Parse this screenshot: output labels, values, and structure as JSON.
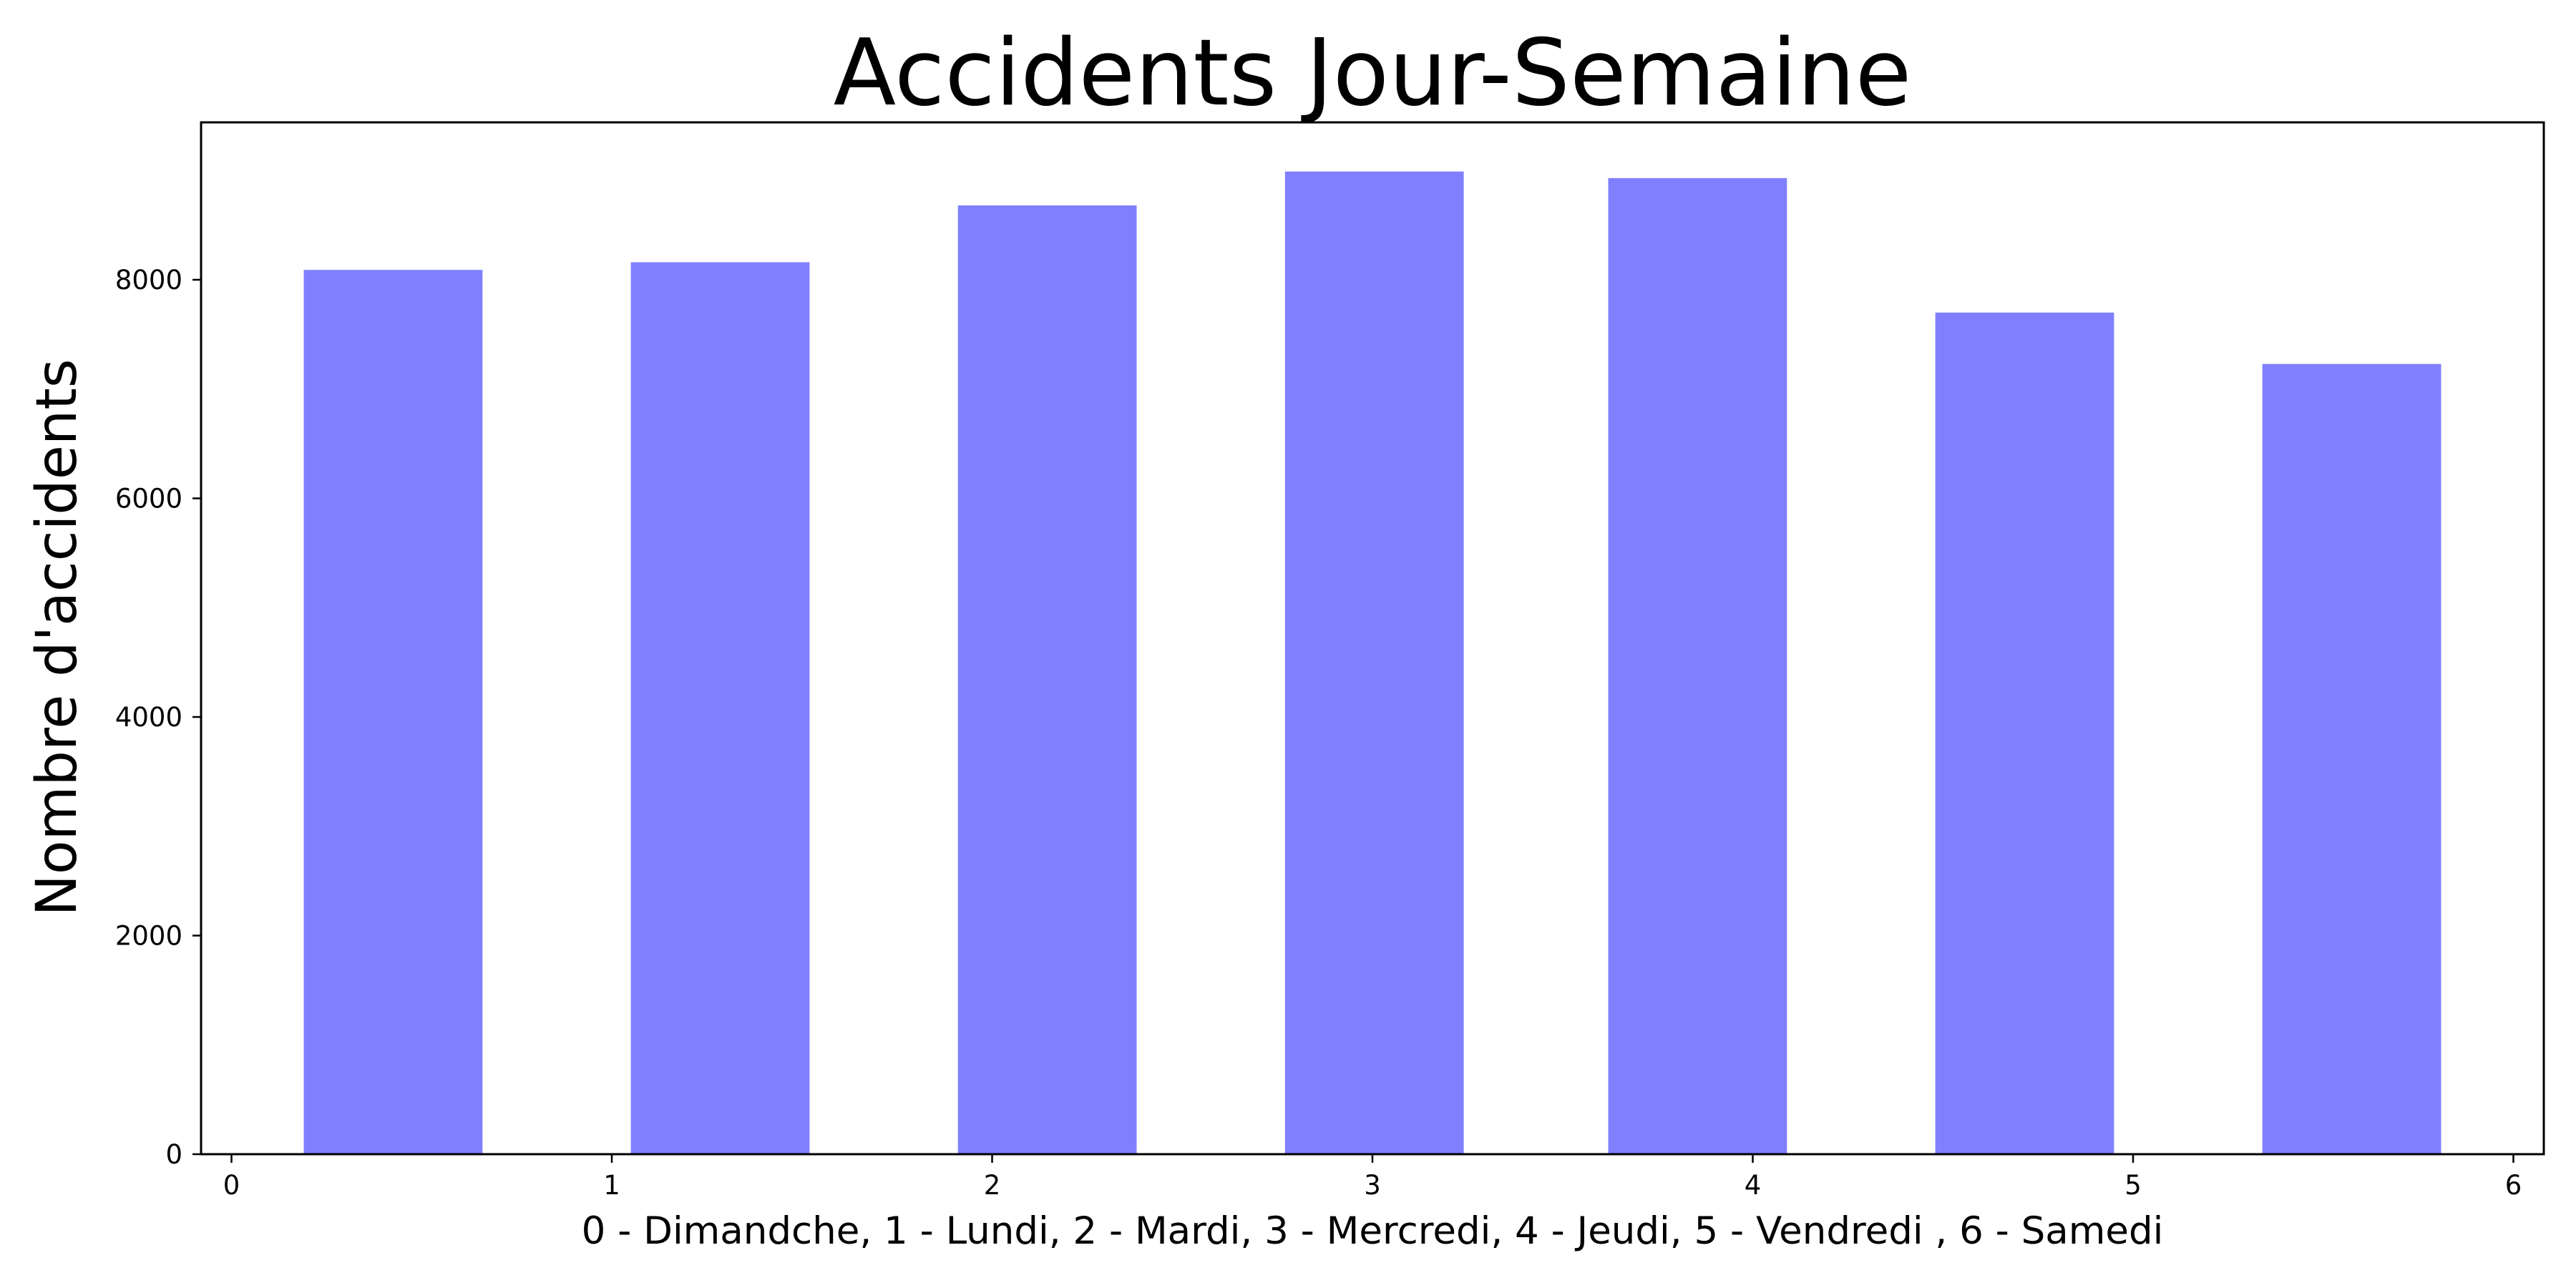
{
  "chart_data": {
    "type": "bar",
    "title": "Accidents Jour-Semaine",
    "xlabel": "0 - Dimandche,  1 - Lundi, 2 - Mardi, 3 - Mercredi, 4 - Jeudi, 5 - Vendredi , 6 - Samedi",
    "ylabel": "Nombre d'accidents",
    "bars": [
      {
        "x_start": 0.19,
        "x_end": 0.66,
        "value": 8090
      },
      {
        "x_start": 1.05,
        "x_end": 1.52,
        "value": 8160
      },
      {
        "x_start": 1.91,
        "x_end": 2.38,
        "value": 8680
      },
      {
        "x_start": 2.77,
        "x_end": 3.24,
        "value": 8990
      },
      {
        "x_start": 3.62,
        "x_end": 4.09,
        "value": 8930
      },
      {
        "x_start": 4.48,
        "x_end": 4.95,
        "value": 7700
      },
      {
        "x_start": 5.34,
        "x_end": 5.81,
        "value": 7230
      }
    ],
    "xticks": [
      0,
      1,
      2,
      3,
      4,
      5,
      6
    ],
    "yticks": [
      0,
      2000,
      4000,
      6000,
      8000
    ],
    "xlim": [
      -0.08,
      6.08
    ],
    "ylim": [
      0,
      9440
    ],
    "bar_color": "#8080ff",
    "grid": false,
    "legend": false
  }
}
